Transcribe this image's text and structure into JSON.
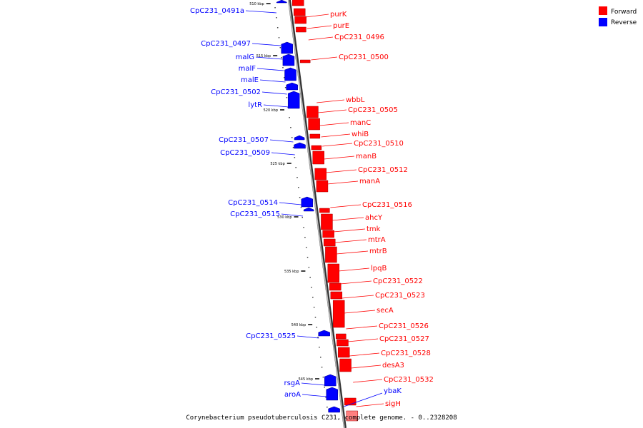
{
  "caption": "Corynebacterium pseudotuberculosis C231, complete genome. - 0..2328208",
  "legend": [
    {
      "label": "Forward",
      "color": "#ff0000"
    },
    {
      "label": "Reverse",
      "color": "#0000ff"
    }
  ],
  "colors": {
    "forward": "#ff0000",
    "reverse": "#0000ff",
    "backbone": "#888888"
  },
  "ticks": [
    "510 kbp",
    "515 kbp",
    "520 kbp",
    "525 kbp",
    "530 kbp",
    "535 kbp",
    "540 kbp",
    "545 kbp"
  ],
  "forward_genes": [
    "purK",
    "purE",
    "CpC231_0496",
    "CpC231_0500",
    "wbbL",
    "CpC231_0505",
    "manC",
    "whiB",
    "CpC231_0510",
    "manB",
    "CpC231_0512",
    "manA",
    "CpC231_0516",
    "ahcY",
    "tmk",
    "mtrA",
    "mtrB",
    "lpqB",
    "CpC231_0522",
    "CpC231_0523",
    "secA",
    "CpC231_0526",
    "CpC231_0527",
    "CpC231_0528",
    "desA3",
    "CpC231_0532",
    "sigH"
  ],
  "reverse_genes": [
    "CpC231_0491a",
    "CpC231_0497",
    "malG",
    "malF",
    "malE",
    "CpC231_0502",
    "lytR",
    "CpC231_0507",
    "CpC231_0509",
    "CpC231_0514",
    "CpC231_0515",
    "CpC231_0525",
    "rsgA",
    "aroA",
    "ybaK"
  ]
}
